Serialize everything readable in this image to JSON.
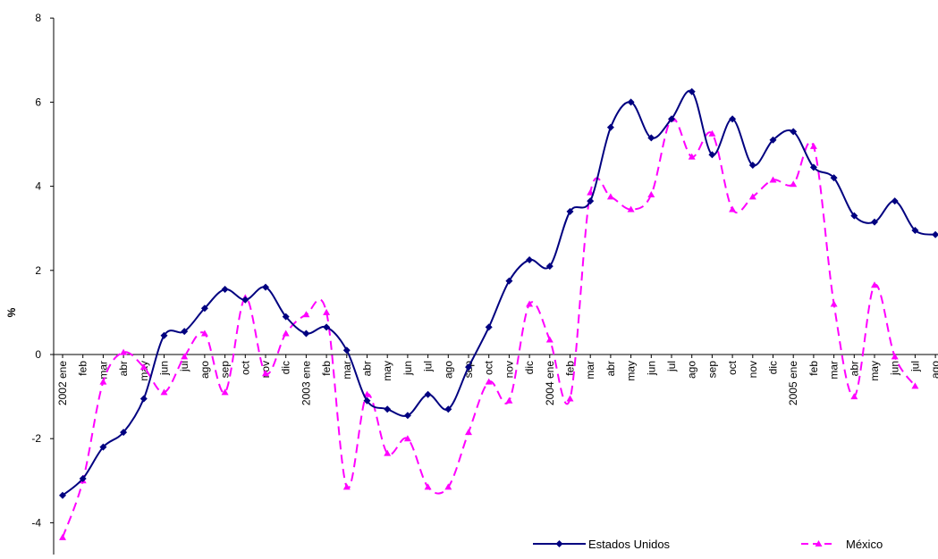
{
  "chart_data": {
    "type": "line",
    "title": "",
    "xlabel": "",
    "ylabel": "%",
    "ylim": [
      -4.5,
      8
    ],
    "yticks": [
      -4,
      -2,
      0,
      2,
      4,
      6,
      8
    ],
    "grid": false,
    "legend_position": "bottom-right",
    "categories": [
      "2002 ene",
      "feb",
      "mar",
      "abr",
      "may",
      "jun",
      "jul",
      "ago",
      "sep",
      "oct",
      "nov",
      "dic",
      "2003 ene",
      "feb",
      "mar",
      "abr",
      "may",
      "jun",
      "jul",
      "ago",
      "sep",
      "oct",
      "nov",
      "dic",
      "2004 ene",
      "feb",
      "mar",
      "abr",
      "may",
      "jun",
      "jul",
      "ago",
      "sep",
      "oct",
      "nov",
      "dic",
      "2005 ene",
      "feb",
      "mar",
      "abr",
      "may",
      "jun",
      "jul",
      "ago"
    ],
    "series": [
      {
        "name": "Estados Unidos",
        "color": "#000080",
        "line_style": "solid",
        "marker": "diamond",
        "values": [
          -3.35,
          -2.95,
          -2.2,
          -1.85,
          -1.05,
          0.45,
          0.55,
          1.1,
          1.55,
          1.3,
          1.6,
          0.9,
          0.5,
          0.65,
          0.1,
          -1.1,
          -1.3,
          -1.45,
          -0.95,
          -1.3,
          -0.3,
          0.65,
          1.75,
          2.25,
          2.1,
          3.4,
          3.65,
          5.4,
          6.0,
          5.15,
          5.6,
          6.25,
          4.75,
          5.6,
          4.5,
          5.1,
          5.3,
          4.45,
          4.2,
          3.3,
          3.15,
          3.65,
          2.95,
          2.85
        ]
      },
      {
        "name": "México",
        "color": "#ff00ff",
        "line_style": "dashed",
        "marker": "triangle",
        "values": [
          -4.35,
          -3.0,
          -0.65,
          0.05,
          -0.3,
          -0.9,
          -0.05,
          0.5,
          -0.9,
          1.35,
          -0.45,
          0.5,
          0.95,
          1.0,
          -3.15,
          -0.95,
          -2.35,
          -2.0,
          -3.15,
          -3.15,
          -1.85,
          -0.65,
          -1.1,
          1.2,
          0.35,
          -1.05,
          3.85,
          3.75,
          3.45,
          3.8,
          5.6,
          4.7,
          5.25,
          3.45,
          3.75,
          4.15,
          4.05,
          4.95,
          1.2,
          -1.0,
          1.65,
          -0.05,
          -0.75,
          null
        ]
      }
    ]
  }
}
